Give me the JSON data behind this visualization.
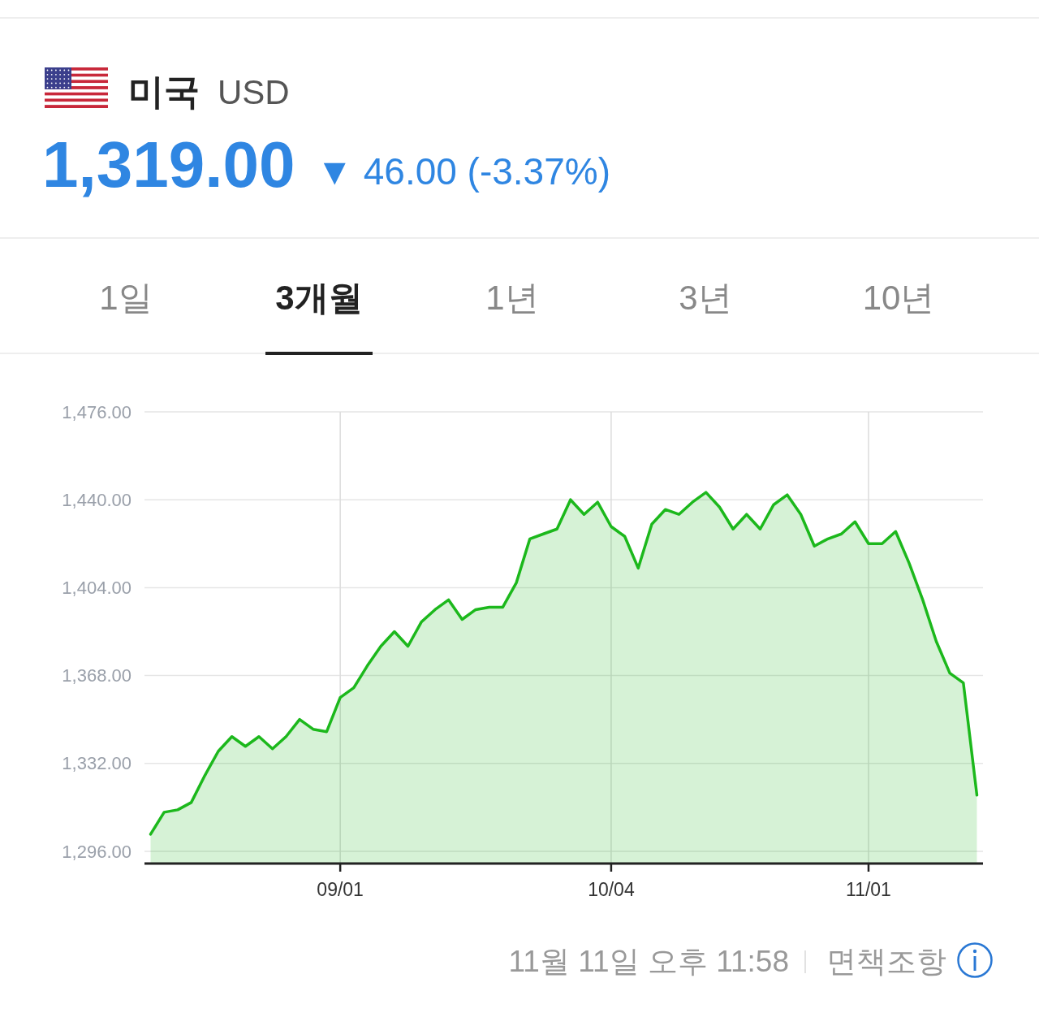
{
  "chart_data": {
    "type": "area",
    "title": "미국",
    "subtitle": "USD",
    "annotations": [
      "1,319.00",
      "▼ 46.00 (-3.37%)",
      "1일",
      "3개월",
      "1년",
      "3년",
      "10년",
      "11월 11일 오후 11:58",
      "면책조항"
    ],
    "categories": [
      null,
      null,
      null,
      null,
      null,
      null,
      null,
      null,
      null,
      null,
      null,
      null,
      null,
      null,
      "09/01",
      null,
      null,
      null,
      null,
      null,
      null,
      null,
      null,
      null,
      null,
      null,
      null,
      null,
      null,
      null,
      null,
      null,
      null,
      null,
      "10/04",
      null,
      null,
      null,
      null,
      null,
      null,
      null,
      null,
      null,
      null,
      null,
      null,
      null,
      null,
      null,
      null,
      null,
      null,
      "11/01",
      null,
      null,
      null,
      null,
      null,
      null,
      null,
      null
    ],
    "values": [
      1303,
      1312,
      1313,
      1316,
      1327,
      1337,
      1343,
      1339,
      1343,
      1338,
      1343,
      1350,
      1346,
      1345,
      1359,
      1363,
      1372,
      1380,
      1386,
      1380,
      1390,
      1395,
      1399,
      1391,
      1395,
      1396,
      1396,
      1406,
      1424,
      1426,
      1428,
      1440,
      1434,
      1439,
      1429,
      1425,
      1412,
      1430,
      1436,
      1434,
      1439,
      1443,
      1437,
      1428,
      1434,
      1428,
      1438,
      1442,
      1434,
      1421,
      1424,
      1426,
      1431,
      1422,
      1422,
      1427,
      1414,
      1399,
      1382,
      1369,
      1365,
      1319
    ],
    "color": "#1cb81c",
    "ylim": [
      1291,
      1476
    ],
    "yticks": [
      {
        "value": 1296,
        "label": "1,296.00"
      },
      {
        "value": 1332,
        "label": "1,332.00"
      },
      {
        "value": 1368,
        "label": "1,368.00"
      },
      {
        "value": 1404,
        "label": "1,404.00"
      },
      {
        "value": 1440,
        "label": "1,440.00"
      },
      {
        "value": 1476,
        "label": "1,476.00"
      }
    ],
    "grid": true
  }
}
